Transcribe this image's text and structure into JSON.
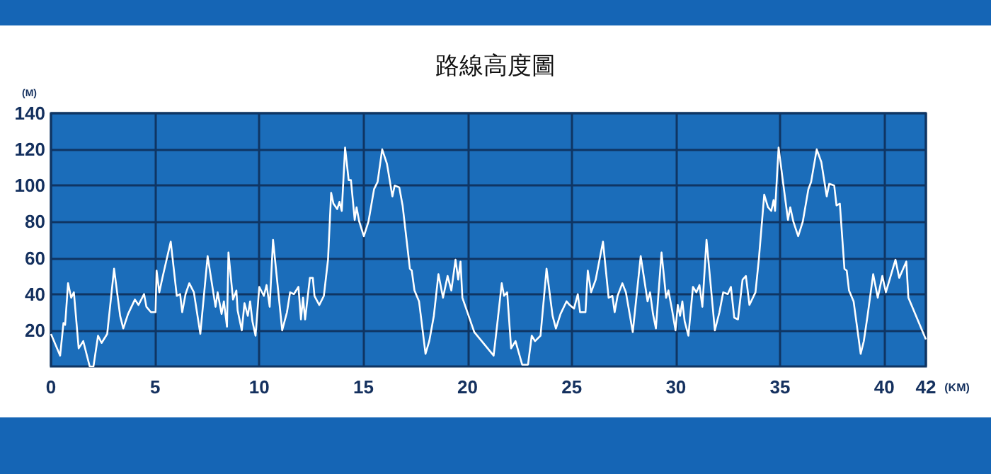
{
  "chart_data": {
    "type": "line",
    "title": "路線高度圖",
    "xlabel": "(KM)",
    "ylabel": "(M)",
    "x": [
      0,
      0.44,
      0.6,
      0.68,
      0.82,
      0.97,
      1.1,
      1.33,
      1.55,
      1.86,
      2.04,
      2.26,
      2.43,
      2.7,
      3.03,
      3.32,
      3.47,
      3.7,
      4.03,
      4.2,
      4.47,
      4.58,
      4.8,
      5.02,
      5.07,
      5.2,
      5.35,
      5.75,
      6.04,
      6.2,
      6.3,
      6.46,
      6.64,
      6.86,
      7.17,
      7.52,
      7.9,
      8.0,
      8.19,
      8.3,
      8.45,
      8.52,
      8.74,
      8.9,
      8.96,
      9.16,
      9.29,
      9.45,
      9.56,
      9.67,
      9.82,
      10.0,
      10.22,
      10.35,
      10.5,
      10.66,
      11.1,
      11.33,
      11.48,
      11.66,
      11.88,
      12.0,
      12.1,
      12.2,
      12.43,
      12.57,
      12.65,
      12.88,
      13.1,
      13.3,
      13.45,
      13.56,
      13.74,
      13.85,
      13.96,
      14.12,
      14.29,
      14.4,
      14.58,
      14.67,
      14.8,
      15.02,
      15.24,
      15.51,
      15.68,
      15.9,
      16.13,
      16.39,
      16.5,
      16.72,
      16.88,
      17.23,
      17.32,
      17.45,
      17.67,
      17.98,
      18.16,
      18.38,
      18.6,
      18.82,
      19.04,
      19.22,
      19.42,
      19.55,
      19.66,
      19.75,
      20.32,
      21.25,
      21.42,
      21.64,
      21.75,
      21.9,
      22.09,
      22.3,
      22.62,
      22.9,
      23.08,
      23.24,
      23.5,
      23.79,
      24.08,
      24.24,
      24.46,
      24.75,
      24.9,
      25.11,
      25.29,
      25.4,
      25.66,
      25.77,
      25.93,
      26.15,
      26.5,
      26.77,
      26.95,
      27.06,
      27.2,
      27.43,
      27.6,
      27.93,
      28.31,
      28.64,
      28.76,
      28.9,
      29.04,
      29.31,
      29.53,
      29.64,
      29.82,
      29.98,
      30.09,
      30.2,
      30.31,
      30.42,
      30.6,
      30.82,
      30.98,
      31.13,
      31.27,
      31.47,
      31.87,
      32.09,
      32.27,
      32.49,
      32.64,
      32.8,
      32.98,
      33.2,
      33.36,
      33.53,
      33.82,
      33.98,
      34.24,
      34.42,
      34.58,
      34.69,
      34.76,
      34.93,
      35.13,
      35.38,
      35.49,
      35.64,
      35.87,
      36.09,
      36.36,
      36.49,
      36.76,
      36.98,
      37.24,
      37.36,
      37.6,
      37.71,
      37.87,
      38.09,
      38.2,
      38.31,
      38.53,
      38.87,
      39.02,
      39.2,
      39.47,
      39.69,
      39.91,
      40.08,
      40.54,
      40.72,
      41.06,
      41.16,
      42.0
    ],
    "series": [
      {
        "color": "#ffffff",
        "values": [
          18,
          6,
          24,
          23,
          46,
          38,
          41,
          10,
          14,
          0,
          0,
          17,
          13,
          18,
          54,
          28,
          21,
          29,
          37,
          34,
          40,
          33,
          30,
          30,
          53,
          41,
          49,
          69,
          39,
          40,
          30,
          40,
          46,
          41,
          18,
          61,
          33,
          41,
          29,
          36,
          22,
          63,
          37,
          42,
          31,
          20,
          35,
          28,
          36,
          25,
          17,
          44,
          39,
          45,
          33,
          70,
          20,
          30,
          41,
          40,
          44,
          26,
          38,
          26,
          49,
          49,
          39,
          34,
          39,
          59,
          96,
          90,
          87,
          91,
          86,
          121,
          103,
          103,
          81,
          88,
          80,
          72,
          80,
          98,
          102,
          120,
          112,
          94,
          100,
          99,
          89,
          54,
          53,
          42,
          36,
          7,
          14,
          28,
          51,
          38,
          50,
          42,
          59,
          48,
          58,
          38,
          19,
          6,
          23,
          46,
          39,
          41,
          10,
          14,
          1,
          1,
          17,
          14,
          17,
          54,
          28,
          21,
          29,
          36,
          34,
          32,
          40,
          30,
          30,
          53,
          41,
          48,
          69,
          38,
          39,
          30,
          39,
          46,
          41,
          19,
          61,
          36,
          41,
          29,
          21,
          63,
          38,
          42,
          31,
          20,
          34,
          28,
          36,
          25,
          17,
          44,
          41,
          45,
          33,
          70,
          20,
          30,
          41,
          40,
          44,
          27,
          26,
          48,
          50,
          34,
          41,
          59,
          95,
          88,
          86,
          92,
          86,
          121,
          103,
          81,
          88,
          80,
          72,
          80,
          98,
          102,
          120,
          113,
          94,
          101,
          100,
          89,
          90,
          54,
          53,
          42,
          36,
          7,
          14,
          28,
          51,
          38,
          50,
          41,
          59,
          49,
          58,
          38,
          15
        ]
      }
    ],
    "xlim": [
      0,
      42
    ],
    "xticks": [
      0,
      5,
      10,
      15,
      20,
      25,
      30,
      35,
      40,
      42
    ],
    "ylim": [
      0,
      140
    ],
    "yticks": [
      20,
      40,
      60,
      80,
      100,
      120,
      140
    ],
    "grid": true,
    "marker": "none",
    "line_style": "solid"
  }
}
